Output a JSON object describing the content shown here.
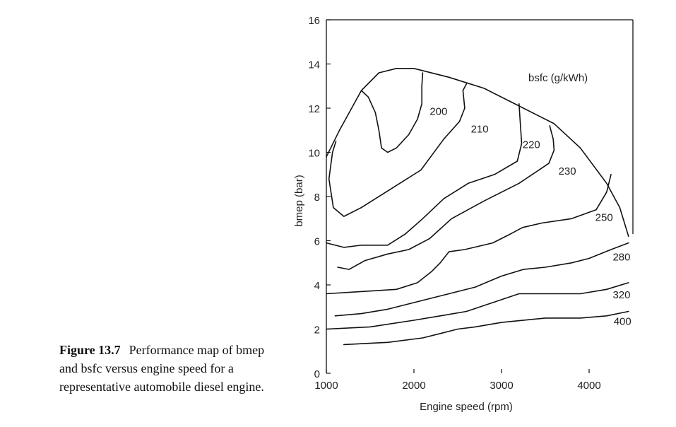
{
  "caption": {
    "label": "Figure 13.7",
    "text": "Performance map of bmep and bsfc versus engine speed for a representative automobile diesel engine."
  },
  "chart_data": {
    "type": "line",
    "title": "",
    "xlabel": "Engine  speed (rpm)",
    "ylabel": "bmep (bar)",
    "legend_title": "bsfc (g/kWh)",
    "xlim": [
      1000,
      4500
    ],
    "ylim": [
      0,
      16
    ],
    "x_ticks": [
      1000,
      2000,
      3000,
      4000
    ],
    "y_ticks": [
      0,
      2,
      4,
      6,
      8,
      10,
      12,
      14,
      16
    ],
    "series": [
      {
        "name": "envelope",
        "points": [
          [
            1000,
            9.8
          ],
          [
            1150,
            11.0
          ],
          [
            1400,
            12.8
          ],
          [
            1600,
            13.6
          ],
          [
            1800,
            13.8
          ],
          [
            2000,
            13.8
          ],
          [
            2400,
            13.4
          ],
          [
            2800,
            12.9
          ],
          [
            3200,
            12.1
          ],
          [
            3600,
            11.3
          ],
          [
            3900,
            10.2
          ],
          [
            4200,
            8.6
          ],
          [
            4350,
            7.5
          ],
          [
            4450,
            6.2
          ]
        ]
      },
      {
        "name": "200",
        "label": "200",
        "points": [
          [
            2100,
            13.6
          ],
          [
            2090,
            13.0
          ],
          [
            2090,
            12.2
          ],
          [
            2040,
            11.5
          ],
          [
            1940,
            10.8
          ],
          [
            1800,
            10.2
          ],
          [
            1700,
            10.0
          ],
          [
            1630,
            10.2
          ],
          [
            1600,
            11.0
          ],
          [
            1560,
            11.8
          ],
          [
            1480,
            12.5
          ],
          [
            1400,
            12.8
          ]
        ]
      },
      {
        "name": "210",
        "label": "210",
        "points": [
          [
            2600,
            13.1
          ],
          [
            2560,
            12.8
          ],
          [
            2580,
            12.0
          ],
          [
            2520,
            11.4
          ],
          [
            2340,
            10.6
          ],
          [
            2080,
            9.2
          ],
          [
            1720,
            8.3
          ],
          [
            1400,
            7.5
          ],
          [
            1200,
            7.1
          ],
          [
            1080,
            7.5
          ],
          [
            1030,
            8.8
          ],
          [
            1070,
            10.0
          ],
          [
            1110,
            10.5
          ]
        ]
      },
      {
        "name": "220",
        "label": "220",
        "points": [
          [
            3200,
            12.2
          ],
          [
            3210,
            11.6
          ],
          [
            3230,
            10.4
          ],
          [
            3180,
            9.6
          ],
          [
            2920,
            9.0
          ],
          [
            2620,
            8.6
          ],
          [
            2340,
            7.9
          ],
          [
            2100,
            7.0
          ],
          [
            1900,
            6.3
          ],
          [
            1700,
            5.8
          ],
          [
            1400,
            5.8
          ],
          [
            1200,
            5.7
          ],
          [
            1000,
            5.9
          ]
        ]
      },
      {
        "name": "230",
        "label": "230",
        "points": [
          [
            3550,
            11.2
          ],
          [
            3590,
            10.6
          ],
          [
            3600,
            10.1
          ],
          [
            3540,
            9.5
          ],
          [
            3200,
            8.6
          ],
          [
            2800,
            7.8
          ],
          [
            2430,
            7.0
          ],
          [
            2180,
            6.1
          ],
          [
            1940,
            5.6
          ],
          [
            1700,
            5.4
          ],
          [
            1440,
            5.1
          ],
          [
            1260,
            4.7
          ],
          [
            1130,
            4.8
          ]
        ]
      },
      {
        "name": "250",
        "label": "250",
        "points": [
          [
            4250,
            9.0
          ],
          [
            4200,
            8.2
          ],
          [
            4080,
            7.4
          ],
          [
            3800,
            7.0
          ],
          [
            3460,
            6.8
          ],
          [
            3240,
            6.6
          ],
          [
            3100,
            6.3
          ],
          [
            2900,
            5.9
          ],
          [
            2580,
            5.6
          ],
          [
            2400,
            5.5
          ],
          [
            2300,
            5.0
          ],
          [
            2200,
            4.6
          ],
          [
            2040,
            4.1
          ],
          [
            1800,
            3.8
          ],
          [
            1400,
            3.7
          ],
          [
            1000,
            3.6
          ]
        ]
      },
      {
        "name": "280",
        "label": "280",
        "points": [
          [
            4450,
            5.9
          ],
          [
            4250,
            5.6
          ],
          [
            4000,
            5.2
          ],
          [
            3800,
            5.0
          ],
          [
            3500,
            4.8
          ],
          [
            3250,
            4.7
          ],
          [
            3000,
            4.4
          ],
          [
            2700,
            3.9
          ],
          [
            2400,
            3.6
          ],
          [
            2000,
            3.2
          ],
          [
            1700,
            2.9
          ],
          [
            1400,
            2.7
          ],
          [
            1100,
            2.6
          ]
        ]
      },
      {
        "name": "320",
        "label": "320",
        "points": [
          [
            4450,
            4.1
          ],
          [
            4200,
            3.8
          ],
          [
            3900,
            3.6
          ],
          [
            3400,
            3.6
          ],
          [
            3200,
            3.6
          ],
          [
            2900,
            3.2
          ],
          [
            2600,
            2.8
          ],
          [
            2300,
            2.6
          ],
          [
            2000,
            2.4
          ],
          [
            1500,
            2.1
          ],
          [
            1000,
            2.0
          ]
        ]
      },
      {
        "name": "400",
        "label": "400",
        "points": [
          [
            4450,
            2.8
          ],
          [
            4200,
            2.6
          ],
          [
            3900,
            2.5
          ],
          [
            3500,
            2.5
          ],
          [
            3000,
            2.3
          ],
          [
            2700,
            2.1
          ],
          [
            2500,
            2.0
          ],
          [
            2300,
            1.8
          ],
          [
            2100,
            1.6
          ],
          [
            1700,
            1.4
          ],
          [
            1200,
            1.3
          ]
        ]
      }
    ],
    "contour_labels": [
      {
        "text": "200",
        "x": 2180,
        "y": 11.7
      },
      {
        "text": "210",
        "x": 2650,
        "y": 10.9
      },
      {
        "text": "220",
        "x": 3240,
        "y": 10.2
      },
      {
        "text": "230",
        "x": 3650,
        "y": 9.0
      },
      {
        "text": "250",
        "x": 4070,
        "y": 6.9
      },
      {
        "text": "280",
        "x": 4270,
        "y": 5.1
      },
      {
        "text": "320",
        "x": 4270,
        "y": 3.4
      },
      {
        "text": "400",
        "x": 4280,
        "y": 2.2
      }
    ]
  }
}
